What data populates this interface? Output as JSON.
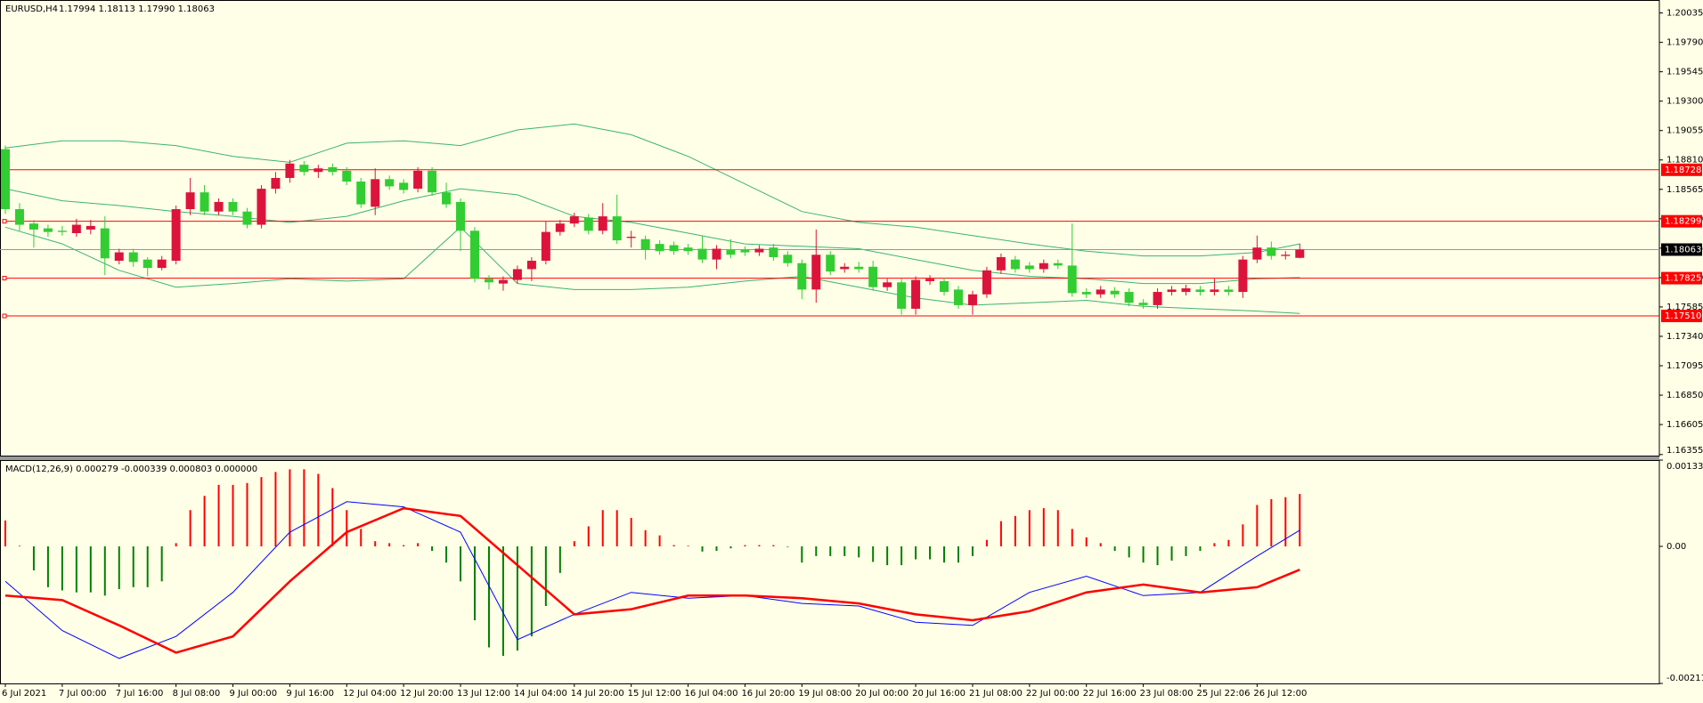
{
  "chart_data": [
    {
      "type": "candlestick",
      "title": "EURUSD,H4",
      "quote": "1.17994 1.18113 1.17990 1.18063",
      "up_color": "#dc143c",
      "down_color": "#32cd32",
      "categories": [
        "6 Jul 2021",
        null,
        null,
        null,
        "7 Jul 00:00",
        null,
        null,
        null,
        "7 Jul 16:00",
        null,
        null,
        null,
        "8 Jul 08:00",
        null,
        null,
        null,
        "9 Jul 00:00",
        null,
        null,
        null,
        "9 Jul 16:00",
        null,
        null,
        null,
        "12 Jul 04:00",
        null,
        null,
        null,
        "12 Jul 20:00",
        null,
        null,
        null,
        "13 Jul 12:00",
        null,
        null,
        null,
        "14 Jul 04:00",
        null,
        null,
        null,
        "14 Jul 20:00",
        null,
        null,
        null,
        "15 Jul 12:00",
        null,
        null,
        null,
        "16 Jul 04:00",
        null,
        null,
        null,
        "16 Jul 20:00",
        null,
        null,
        null,
        "19 Jul 08:00",
        null,
        null,
        null,
        "20 Jul 00:00",
        null,
        null,
        null,
        "20 Jul 16:00",
        null,
        null,
        null,
        "21 Jul 08:00",
        null,
        null,
        null,
        "22 Jul 00:00",
        null,
        null,
        null,
        "22 Jul 16:00",
        null,
        null,
        null,
        "23 Jul 08:00",
        null,
        null,
        null,
        "25 Jul 22:06",
        null,
        null,
        null,
        "26 Jul 12:00",
        null,
        null,
        null
      ],
      "open": [
        1.189,
        1.184,
        1.1828,
        1.1824,
        1.1822,
        1.182,
        1.1823,
        1.1824,
        1.1797,
        1.1804,
        1.1798,
        1.1791,
        1.1797,
        1.184,
        1.1854,
        1.1838,
        1.1846,
        1.1838,
        1.1827,
        1.1857,
        1.1866,
        1.1877,
        1.1871,
        1.1875,
        1.1872,
        1.1863,
        1.1842,
        1.1865,
        1.1862,
        1.1857,
        1.1872,
        1.1854,
        1.1846,
        1.1822,
        1.1782,
        1.1778,
        1.1781,
        1.179,
        1.1797,
        1.1821,
        1.1828,
        1.1833,
        1.1822,
        1.1834,
        1.1816,
        1.1815,
        1.1811,
        1.181,
        1.1808,
        1.1807,
        1.1798,
        1.1806,
        1.1806,
        1.1804,
        1.1808,
        1.1802,
        1.1795,
        1.1773,
        1.1802,
        1.179,
        1.1792,
        1.1792,
        1.1775,
        1.1779,
        1.1757,
        1.178,
        1.178,
        1.1773,
        1.176,
        1.1769,
        1.1789,
        1.1798,
        1.1793,
        1.179,
        1.1795,
        1.1793,
        1.1771,
        1.1769,
        1.1772,
        1.1771,
        1.1762,
        1.176,
        1.1771,
        1.1771,
        1.1773,
        1.1771,
        1.1773,
        1.1771,
        1.1798,
        1.1808,
        1.1801,
        1.17994
      ],
      "high": [
        1.1893,
        1.1845,
        1.1831,
        1.1827,
        1.1826,
        1.1832,
        1.1831,
        1.1834,
        1.1807,
        1.1807,
        1.18,
        1.1801,
        1.1843,
        1.1866,
        1.186,
        1.1849,
        1.1849,
        1.1841,
        1.186,
        1.1871,
        1.1881,
        1.188,
        1.1877,
        1.1878,
        1.1875,
        1.1866,
        1.1874,
        1.1868,
        1.1865,
        1.1875,
        1.1875,
        1.1862,
        1.1849,
        1.1825,
        1.1785,
        1.1784,
        1.1793,
        1.18,
        1.183,
        1.1831,
        1.1837,
        1.1836,
        1.1845,
        1.1852,
        1.1822,
        1.1818,
        1.1814,
        1.1813,
        1.1811,
        1.1818,
        1.181,
        1.1815,
        1.1809,
        1.181,
        1.1811,
        1.1805,
        1.1798,
        1.1823,
        1.1805,
        1.1795,
        1.1796,
        1.1797,
        1.1782,
        1.1782,
        1.1784,
        1.1785,
        1.1783,
        1.1776,
        1.1772,
        1.1792,
        1.1803,
        1.1801,
        1.1796,
        1.1798,
        1.1798,
        1.1828,
        1.1774,
        1.1776,
        1.1775,
        1.1774,
        1.1765,
        1.1774,
        1.1776,
        1.1777,
        1.1776,
        1.1782,
        1.1776,
        1.1801,
        1.1818,
        1.1813,
        1.1805,
        1.18113
      ],
      "low": [
        1.1836,
        1.1822,
        1.1808,
        1.1817,
        1.1818,
        1.1817,
        1.1819,
        1.1785,
        1.1794,
        1.1792,
        1.1784,
        1.1789,
        1.1794,
        1.1835,
        1.1835,
        1.1835,
        1.1835,
        1.1824,
        1.1824,
        1.1853,
        1.1862,
        1.1868,
        1.1866,
        1.1868,
        1.186,
        1.1841,
        1.1835,
        1.1856,
        1.1853,
        1.1854,
        1.1851,
        1.1841,
        1.1805,
        1.1779,
        1.1773,
        1.1772,
        1.1778,
        1.178,
        1.1794,
        1.1818,
        1.1825,
        1.1819,
        1.1819,
        1.1811,
        1.1808,
        1.1798,
        1.1802,
        1.1802,
        1.1802,
        1.1795,
        1.179,
        1.1799,
        1.1801,
        1.1801,
        1.1797,
        1.1792,
        1.1765,
        1.1762,
        1.1785,
        1.1787,
        1.1787,
        1.1772,
        1.1772,
        1.1752,
        1.1752,
        1.1777,
        1.1768,
        1.1757,
        1.1752,
        1.1766,
        1.1786,
        1.1787,
        1.1787,
        1.1787,
        1.179,
        1.1767,
        1.1766,
        1.1766,
        1.1766,
        1.1759,
        1.1757,
        1.1757,
        1.1768,
        1.1768,
        1.1768,
        1.1768,
        1.1768,
        1.1766,
        1.1795,
        1.1798,
        1.1798,
        1.1799
      ],
      "close": [
        1.184,
        1.1827,
        1.1823,
        1.1821,
        1.1821,
        1.1827,
        1.1826,
        1.1799,
        1.1804,
        1.1796,
        1.1791,
        1.1798,
        1.184,
        1.1854,
        1.1838,
        1.1846,
        1.1838,
        1.1827,
        1.1857,
        1.1866,
        1.1878,
        1.1871,
        1.1874,
        1.1871,
        1.1863,
        1.1844,
        1.1865,
        1.1859,
        1.1856,
        1.1872,
        1.1854,
        1.1844,
        1.1822,
        1.1782,
        1.1779,
        1.1781,
        1.179,
        1.1797,
        1.1821,
        1.1828,
        1.1834,
        1.1822,
        1.1834,
        1.1814,
        1.1817,
        1.1806,
        1.1805,
        1.1805,
        1.1805,
        1.1798,
        1.1807,
        1.1802,
        1.1804,
        1.1807,
        1.18,
        1.1795,
        1.1773,
        1.1802,
        1.1788,
        1.1792,
        1.179,
        1.1775,
        1.1779,
        1.1757,
        1.1781,
        1.1782,
        1.1771,
        1.176,
        1.1769,
        1.1789,
        1.18,
        1.179,
        1.179,
        1.1795,
        1.1793,
        1.177,
        1.1769,
        1.1773,
        1.1769,
        1.1762,
        1.176,
        1.1771,
        1.1773,
        1.1774,
        1.1771,
        1.1773,
        1.1771,
        1.1798,
        1.1808,
        1.1801,
        1.1802,
        1.18063
      ],
      "bands": {
        "color": "#3cb371",
        "x": [
          0,
          4,
          8,
          12,
          16,
          20,
          24,
          28,
          32,
          36,
          40,
          44,
          48,
          52,
          56,
          60,
          64,
          68,
          72,
          76,
          80,
          84,
          88,
          91
        ],
        "upper": [
          1.1891,
          1.1897,
          1.1897,
          1.1893,
          1.1884,
          1.1879,
          1.1895,
          1.1897,
          1.1893,
          1.1906,
          1.1911,
          1.1902,
          1.1884,
          1.1861,
          1.1838,
          1.1829,
          1.1825,
          1.1818,
          1.1811,
          1.1805,
          1.1801,
          1.1801,
          1.1804,
          1.1811
        ],
        "middle": [
          1.1857,
          1.1847,
          1.1843,
          1.1838,
          1.1834,
          1.1829,
          1.1834,
          1.1847,
          1.1857,
          1.1852,
          1.1834,
          1.1829,
          1.182,
          1.1811,
          1.1809,
          1.1807,
          1.1798,
          1.1789,
          1.1784,
          1.1782,
          1.1778,
          1.1778,
          1.1782,
          1.1783
        ],
        "lower": [
          1.1825,
          1.1811,
          1.1789,
          1.1775,
          1.1778,
          1.1782,
          1.178,
          1.1782,
          1.1825,
          1.1778,
          1.1773,
          1.1773,
          1.1775,
          1.178,
          1.1784,
          1.1775,
          1.1766,
          1.176,
          1.1762,
          1.1764,
          1.1759,
          1.1757,
          1.1755,
          1.1753
        ]
      },
      "levels": [
        1.18728,
        1.18299,
        1.17825,
        {
          "value": 1.1751,
          "label": "1.17510"
        }
      ],
      "level_color": "#ff0000",
      "current_price": 1.18063,
      "ylim": [
        1.16346,
        1.20143
      ],
      "yticks": [
        1.20035,
        {
          "value": 1.1979,
          "label": "1.19790"
        },
        1.19545,
        {
          "value": 1.193,
          "label": "1.19300"
        },
        1.19055,
        {
          "value": 1.1881,
          "label": "1.18810"
        },
        1.18565,
        {
          "value": 1.1832,
          "label": "1.18320"
        },
        1.18075,
        {
          "value": 1.1783,
          "label": "1.17830"
        },
        1.17585,
        {
          "value": 1.1734,
          "label": "1.17340"
        },
        1.17095,
        {
          "value": 1.1685,
          "label": "1.16850"
        },
        1.16605,
        1.16355
      ]
    },
    {
      "type": "bar",
      "title": "MACD(12,26,9) 0.000279 -0.000339 0.000803 0.000000",
      "up_color": "#ff0000",
      "down_color": "#008000",
      "values": [
        0.0004,
        1e-05,
        -0.00037,
        -0.00063,
        -0.00068,
        -0.00071,
        -0.00071,
        -0.00076,
        -0.00066,
        -0.00063,
        -0.00063,
        -0.00054,
        5e-05,
        0.00056,
        0.00078,
        0.00095,
        0.00095,
        0.00098,
        0.00107,
        0.00115,
        0.00119,
        0.00119,
        0.00112,
        0.0009,
        0.00056,
        0.00027,
        8e-05,
        5e-05,
        2e-05,
        5e-05,
        -7e-05,
        -0.00025,
        -0.00054,
        -0.00114,
        -0.00156,
        -0.00169,
        -0.00161,
        -0.00139,
        -0.00092,
        -0.00041,
        8e-05,
        0.00031,
        0.00056,
        0.00056,
        0.00044,
        0.00025,
        0.00017,
        2e-05,
        1e-05,
        -8e-05,
        -7e-05,
        -3e-05,
        2e-05,
        2e-05,
        2e-05,
        -1e-05,
        -0.00025,
        -0.00015,
        -0.00015,
        -0.00015,
        -0.00017,
        -0.00024,
        -0.00029,
        -0.00029,
        -0.0002,
        -0.0002,
        -0.00025,
        -0.00025,
        -0.00015,
        0.0001,
        0.00039,
        0.00047,
        0.00056,
        0.00059,
        0.00056,
        0.00027,
        0.00014,
        5e-05,
        -7e-05,
        -0.00017,
        -0.00025,
        -0.00029,
        -0.00022,
        -0.00015,
        -7e-05,
        5e-05,
        0.0001,
        0.00034,
        0.00064,
        0.00073,
        0.00076,
        0.00081
      ],
      "lines": [
        {
          "color": "#0000ff",
          "x": [
            0,
            4,
            8,
            12,
            16,
            20,
            24,
            28,
            32,
            36,
            40,
            44,
            48,
            52,
            56,
            60,
            64,
            68,
            72,
            76,
            80,
            84,
            88,
            91
          ],
          "values": [
            -0.00054,
            -0.0013,
            -0.00173,
            -0.00139,
            -0.00071,
            0.00022,
            0.00069,
            0.00061,
            0.00022,
            -0.00144,
            -0.00105,
            -0.00071,
            -0.0008,
            -0.00076,
            -0.00088,
            -0.00092,
            -0.00117,
            -0.00122,
            -0.00071,
            -0.00046,
            -0.00076,
            -0.00071,
            -0.00015,
            0.00025
          ]
        },
        {
          "color": "#ff0000",
          "x": [
            0,
            4,
            8,
            12,
            16,
            20,
            24,
            28,
            32,
            36,
            40,
            44,
            48,
            52,
            56,
            60,
            64,
            68,
            72,
            76,
            80,
            84,
            88,
            91
          ],
          "values": [
            -0.00076,
            -0.00083,
            -0.00122,
            -0.00164,
            -0.00139,
            -0.00054,
            0.00022,
            0.00059,
            0.00047,
            -0.00029,
            -0.00105,
            -0.00097,
            -0.00076,
            -0.00076,
            -0.0008,
            -0.00088,
            -0.00105,
            -0.00114,
            -0.001,
            -0.00071,
            -0.00059,
            -0.00071,
            -0.00063,
            -0.00036
          ]
        }
      ],
      "ylim": [
        -0.002116,
        0.001333
      ],
      "yticks": [
        0.001333,
        {
          "value": 0,
          "label": "0.00"
        },
        -0.002116
      ]
    }
  ]
}
